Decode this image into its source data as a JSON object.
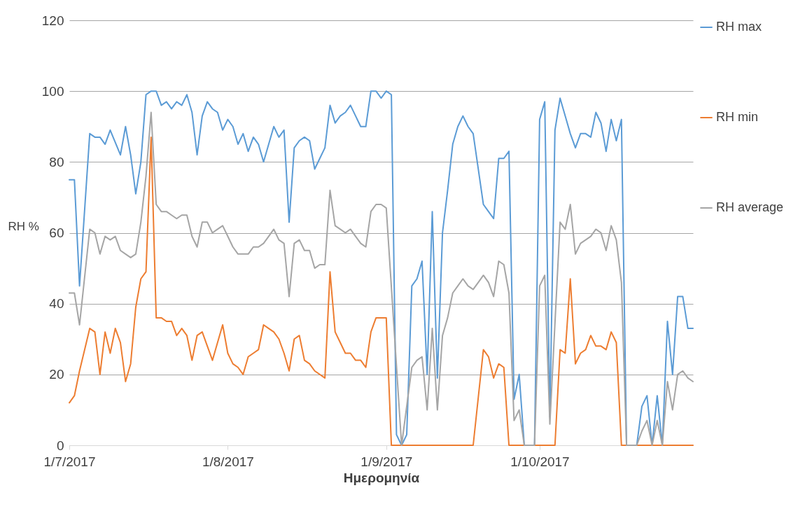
{
  "chart_data": {
    "type": "line",
    "xlabel": "Ημερομηνία",
    "ylabel": "RH %",
    "xlim": [
      "2017-07-01",
      "2017-10-31"
    ],
    "xticks": [
      {
        "value": "2017-07-01",
        "label": "1/7/2017"
      },
      {
        "value": "2017-08-01",
        "label": "1/8/2017"
      },
      {
        "value": "2017-09-01",
        "label": "1/9/2017"
      },
      {
        "value": "2017-10-01",
        "label": "1/10/2017"
      }
    ],
    "ylim": [
      0,
      120
    ],
    "yticks": [
      0,
      20,
      40,
      60,
      80,
      100,
      120
    ],
    "grid": "y",
    "legend": "right",
    "line_style": "solid",
    "series": [
      {
        "name": "RH max",
        "color": "#5b9bd5",
        "x": [
          "2017-07-01",
          "2017-07-02",
          "2017-07-03",
          "2017-07-05",
          "2017-07-06",
          "2017-07-07",
          "2017-07-08",
          "2017-07-09",
          "2017-07-11",
          "2017-07-12",
          "2017-07-13",
          "2017-07-14",
          "2017-07-15",
          "2017-07-16",
          "2017-07-17",
          "2017-07-18",
          "2017-07-19",
          "2017-07-20",
          "2017-07-21",
          "2017-07-22",
          "2017-07-23",
          "2017-07-24",
          "2017-07-25",
          "2017-07-26",
          "2017-07-27",
          "2017-07-28",
          "2017-07-29",
          "2017-07-30",
          "2017-07-31",
          "2017-08-01",
          "2017-08-02",
          "2017-08-03",
          "2017-08-04",
          "2017-08-05",
          "2017-08-06",
          "2017-08-07",
          "2017-08-08",
          "2017-08-09",
          "2017-08-10",
          "2017-08-11",
          "2017-08-12",
          "2017-08-13",
          "2017-08-14",
          "2017-08-15",
          "2017-08-16",
          "2017-08-17",
          "2017-08-18",
          "2017-08-19",
          "2017-08-20",
          "2017-08-21",
          "2017-08-22",
          "2017-08-23",
          "2017-08-24",
          "2017-08-25",
          "2017-08-26",
          "2017-08-27",
          "2017-08-28",
          "2017-08-29",
          "2017-08-30",
          "2017-08-31",
          "2017-09-01",
          "2017-09-02",
          "2017-09-03",
          "2017-09-04",
          "2017-09-05",
          "2017-09-06",
          "2017-09-07",
          "2017-09-08",
          "2017-09-09",
          "2017-09-10",
          "2017-09-11",
          "2017-09-12",
          "2017-09-13",
          "2017-09-14",
          "2017-09-15",
          "2017-09-16",
          "2017-09-17",
          "2017-09-18",
          "2017-09-19",
          "2017-09-20",
          "2017-09-21",
          "2017-09-22",
          "2017-09-23",
          "2017-09-24",
          "2017-09-25",
          "2017-09-26",
          "2017-09-27",
          "2017-09-28",
          "2017-09-30",
          "2017-10-01",
          "2017-10-02",
          "2017-10-03",
          "2017-10-04",
          "2017-10-05",
          "2017-10-06",
          "2017-10-07",
          "2017-10-08",
          "2017-10-09",
          "2017-10-10",
          "2017-10-11",
          "2017-10-12",
          "2017-10-13",
          "2017-10-14",
          "2017-10-15",
          "2017-10-16",
          "2017-10-17",
          "2017-10-18",
          "2017-10-20",
          "2017-10-21",
          "2017-10-22",
          "2017-10-23",
          "2017-10-24",
          "2017-10-25",
          "2017-10-26",
          "2017-10-27",
          "2017-10-28",
          "2017-10-29",
          "2017-10-30",
          "2017-10-31"
        ],
        "values": [
          75,
          75,
          45,
          88,
          87,
          87,
          85,
          89,
          82,
          90,
          82,
          71,
          80,
          99,
          100,
          100,
          96,
          97,
          95,
          97,
          96,
          99,
          94,
          82,
          93,
          97,
          95,
          94,
          89,
          92,
          90,
          85,
          88,
          83,
          87,
          85,
          80,
          85,
          90,
          87,
          89,
          63,
          84,
          86,
          87,
          86,
          78,
          81,
          84,
          96,
          91,
          93,
          94,
          96,
          93,
          90,
          90,
          100,
          100,
          98,
          100,
          99,
          3,
          0,
          3,
          45,
          47,
          52,
          20,
          66,
          19,
          60,
          72,
          85,
          90,
          93,
          90,
          88,
          78,
          68,
          66,
          64,
          81,
          81,
          83,
          13,
          20,
          0,
          0,
          92,
          97,
          8,
          89,
          98,
          93,
          88,
          84,
          88,
          88,
          87,
          94,
          91,
          83,
          92,
          86,
          92,
          0,
          0,
          11,
          14,
          0,
          14,
          0,
          35,
          20,
          42,
          42,
          33,
          33
        ]
      },
      {
        "name": "RH min",
        "color": "#ed7d31",
        "x": [
          "2017-07-01",
          "2017-07-02",
          "2017-07-03",
          "2017-07-04",
          "2017-07-05",
          "2017-07-06",
          "2017-07-07",
          "2017-07-08",
          "2017-07-09",
          "2017-07-10",
          "2017-07-11",
          "2017-07-12",
          "2017-07-13",
          "2017-07-14",
          "2017-07-15",
          "2017-07-16",
          "2017-07-17",
          "2017-07-18",
          "2017-07-19",
          "2017-07-20",
          "2017-07-21",
          "2017-07-22",
          "2017-07-23",
          "2017-07-24",
          "2017-07-25",
          "2017-07-26",
          "2017-07-27",
          "2017-07-28",
          "2017-07-29",
          "2017-07-30",
          "2017-07-31",
          "2017-08-01",
          "2017-08-02",
          "2017-08-03",
          "2017-08-04",
          "2017-08-05",
          "2017-08-06",
          "2017-08-07",
          "2017-08-08",
          "2017-08-09",
          "2017-08-10",
          "2017-08-11",
          "2017-08-12",
          "2017-08-13",
          "2017-08-14",
          "2017-08-15",
          "2017-08-16",
          "2017-08-17",
          "2017-08-18",
          "2017-08-20",
          "2017-08-21",
          "2017-08-22",
          "2017-08-23",
          "2017-08-24",
          "2017-08-25",
          "2017-08-26",
          "2017-08-27",
          "2017-08-28",
          "2017-08-29",
          "2017-08-30",
          "2017-08-31",
          "2017-09-01",
          "2017-09-02",
          "2017-09-18",
          "2017-09-20",
          "2017-09-21",
          "2017-09-22",
          "2017-09-23",
          "2017-09-24",
          "2017-09-25",
          "2017-10-04",
          "2017-10-05",
          "2017-10-06",
          "2017-10-07",
          "2017-10-08",
          "2017-10-09",
          "2017-10-10",
          "2017-10-11",
          "2017-10-12",
          "2017-10-13",
          "2017-10-14",
          "2017-10-15",
          "2017-10-16",
          "2017-10-17",
          "2017-10-31"
        ],
        "values": [
          12,
          14,
          21,
          27,
          33,
          32,
          20,
          32,
          26,
          33,
          29,
          18,
          23,
          39,
          47,
          49,
          87,
          36,
          36,
          35,
          35,
          31,
          33,
          31,
          24,
          31,
          32,
          28,
          24,
          29,
          34,
          26,
          23,
          22,
          20,
          25,
          26,
          27,
          34,
          33,
          32,
          30,
          26,
          21,
          30,
          31,
          24,
          23,
          21,
          19,
          49,
          32,
          29,
          26,
          26,
          24,
          24,
          22,
          32,
          36,
          36,
          36,
          0,
          0,
          27,
          25,
          19,
          23,
          22,
          0,
          0,
          27,
          26,
          47,
          23,
          26,
          27,
          31,
          28,
          28,
          27,
          32,
          29,
          0,
          0
        ]
      },
      {
        "name": "RH average",
        "color": "#a5a5a5",
        "x": [
          "2017-07-01",
          "2017-07-02",
          "2017-07-03",
          "2017-07-05",
          "2017-07-06",
          "2017-07-07",
          "2017-07-08",
          "2017-07-09",
          "2017-07-10",
          "2017-07-11",
          "2017-07-12",
          "2017-07-13",
          "2017-07-14",
          "2017-07-15",
          "2017-07-16",
          "2017-07-17",
          "2017-07-18",
          "2017-07-19",
          "2017-07-20",
          "2017-07-21",
          "2017-07-22",
          "2017-07-23",
          "2017-07-24",
          "2017-07-25",
          "2017-07-26",
          "2017-07-27",
          "2017-07-28",
          "2017-07-29",
          "2017-07-30",
          "2017-07-31",
          "2017-08-01",
          "2017-08-02",
          "2017-08-03",
          "2017-08-04",
          "2017-08-05",
          "2017-08-06",
          "2017-08-07",
          "2017-08-08",
          "2017-08-09",
          "2017-08-10",
          "2017-08-11",
          "2017-08-12",
          "2017-08-13",
          "2017-08-14",
          "2017-08-15",
          "2017-08-16",
          "2017-08-17",
          "2017-08-18",
          "2017-08-19",
          "2017-08-20",
          "2017-08-21",
          "2017-08-22",
          "2017-08-23",
          "2017-08-24",
          "2017-08-25",
          "2017-08-26",
          "2017-08-27",
          "2017-08-28",
          "2017-08-29",
          "2017-08-30",
          "2017-08-31",
          "2017-09-01",
          "2017-09-04",
          "2017-09-06",
          "2017-09-07",
          "2017-09-08",
          "2017-09-09",
          "2017-09-10",
          "2017-09-11",
          "2017-09-12",
          "2017-09-13",
          "2017-09-14",
          "2017-09-15",
          "2017-09-16",
          "2017-09-17",
          "2017-09-18",
          "2017-09-19",
          "2017-09-20",
          "2017-09-21",
          "2017-09-22",
          "2017-09-23",
          "2017-09-24",
          "2017-09-25",
          "2017-09-26",
          "2017-09-27",
          "2017-09-28",
          "2017-09-30",
          "2017-10-01",
          "2017-10-02",
          "2017-10-03",
          "2017-10-05",
          "2017-10-06",
          "2017-10-07",
          "2017-10-08",
          "2017-10-09",
          "2017-10-10",
          "2017-10-11",
          "2017-10-12",
          "2017-10-13",
          "2017-10-14",
          "2017-10-15",
          "2017-10-16",
          "2017-10-17",
          "2017-10-18",
          "2017-10-20",
          "2017-10-21",
          "2017-10-22",
          "2017-10-23",
          "2017-10-24",
          "2017-10-25",
          "2017-10-26",
          "2017-10-27",
          "2017-10-28",
          "2017-10-29",
          "2017-10-30",
          "2017-10-31"
        ],
        "values": [
          43,
          43,
          34,
          61,
          60,
          54,
          59,
          58,
          59,
          55,
          54,
          53,
          54,
          63,
          76,
          94,
          68,
          66,
          66,
          65,
          64,
          65,
          65,
          59,
          56,
          63,
          63,
          60,
          61,
          62,
          59,
          56,
          54,
          54,
          54,
          56,
          56,
          57,
          59,
          61,
          58,
          57,
          42,
          57,
          58,
          55,
          55,
          50,
          51,
          51,
          72,
          62,
          61,
          60,
          61,
          59,
          57,
          56,
          66,
          68,
          68,
          67,
          0,
          22,
          24,
          25,
          10,
          33,
          10,
          31,
          36,
          43,
          45,
          47,
          45,
          44,
          46,
          48,
          46,
          42,
          52,
          51,
          43,
          7,
          10,
          0,
          0,
          45,
          48,
          6,
          63,
          61,
          68,
          54,
          57,
          58,
          59,
          61,
          60,
          55,
          62,
          58,
          46,
          0,
          0,
          4,
          7,
          0,
          7,
          0,
          18,
          10,
          20,
          21,
          19,
          18
        ]
      }
    ]
  }
}
